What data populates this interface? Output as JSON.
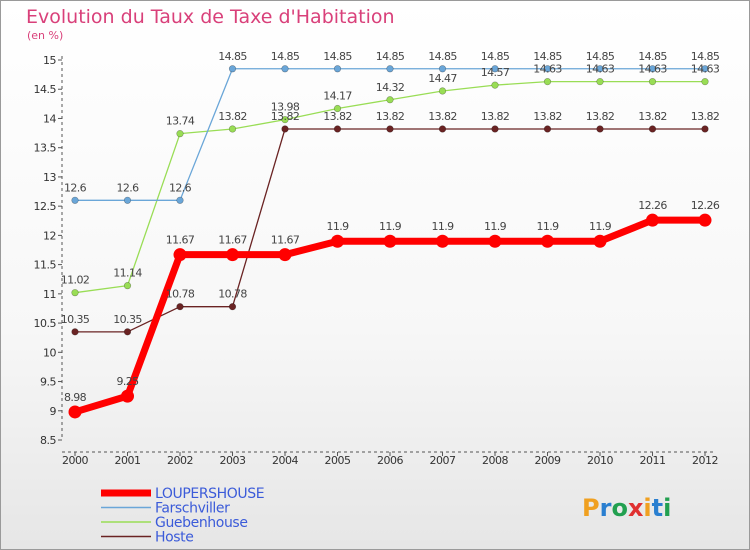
{
  "title": "Evolution du Taux de Taxe d'Habitation",
  "units": "(en %)",
  "logo": "Proxiti",
  "chart_data": {
    "type": "line",
    "x": [
      2000,
      2001,
      2002,
      2003,
      2004,
      2005,
      2006,
      2007,
      2008,
      2009,
      2010,
      2011,
      2012
    ],
    "x_tick_labels": [
      "2000",
      "2001",
      "2002",
      "2003",
      "2004",
      "2005",
      "2006",
      "2007",
      "2008",
      "2009",
      "2010",
      "2011",
      "2012"
    ],
    "ylim": [
      8.5,
      15
    ],
    "y_ticks": [
      8.5,
      9,
      9.5,
      10,
      10.5,
      11,
      11.5,
      12,
      12.5,
      13,
      13.5,
      14,
      14.5,
      15
    ],
    "y_tick_labels": [
      "8.5",
      "9",
      "9.5",
      "10",
      "10.5",
      "11",
      "11.5",
      "12",
      "12.5",
      "13",
      "13.5",
      "14",
      "14.5",
      "15"
    ],
    "grid": false,
    "legend_position": "bottom-left",
    "series": [
      {
        "name": "Hoste",
        "color": "#6a2323",
        "values": [
          10.35,
          10.35,
          10.78,
          10.78,
          13.82,
          13.82,
          13.82,
          13.82,
          13.82,
          13.82,
          13.82,
          13.82,
          13.82
        ],
        "labels": [
          "10.35",
          "10.35",
          "10.78",
          "10.78",
          "13.82",
          "13.82",
          "13.82",
          "13.82",
          "13.82",
          "13.82",
          "13.82",
          "13.82",
          "13.82"
        ]
      },
      {
        "name": "Guebenhouse",
        "color": "#99dd55",
        "values": [
          11.02,
          11.14,
          13.74,
          13.82,
          13.98,
          14.17,
          14.32,
          14.47,
          14.57,
          14.63,
          14.63,
          14.63,
          14.63
        ],
        "labels": [
          "11.02",
          "11.14",
          "13.74",
          "13.82",
          "13.98",
          "14.17",
          "14.32",
          "14.47",
          "14.57",
          "14.63",
          "14.63",
          "14.63",
          "14.63"
        ]
      },
      {
        "name": "Farschviller",
        "color": "#6aa6d8",
        "values": [
          12.6,
          12.6,
          12.6,
          14.85,
          14.85,
          14.85,
          14.85,
          14.85,
          14.85,
          14.85,
          14.85,
          14.85,
          14.85
        ],
        "labels": [
          "12.6",
          "12.6",
          "12.6",
          "14.85",
          "14.85",
          "14.85",
          "14.85",
          "14.85",
          "14.85",
          "14.85",
          "14.85",
          "14.85",
          "14.85"
        ]
      },
      {
        "name": "LOUPERSHOUSE",
        "color": "#ff0000",
        "values": [
          8.98,
          9.25,
          11.67,
          11.67,
          11.67,
          11.9,
          11.9,
          11.9,
          11.9,
          11.9,
          11.9,
          12.26,
          12.26
        ],
        "labels": [
          "8.98",
          "9.25",
          "11.67",
          "11.67",
          "11.67",
          "11.9",
          "11.9",
          "11.9",
          "11.9",
          "11.9",
          "11.9",
          "12.26",
          "12.26"
        ]
      }
    ],
    "legend": [
      {
        "name": "LOUPERSHOUSE",
        "color": "#ff0000"
      },
      {
        "name": "Farschviller",
        "color": "#6aa6d8"
      },
      {
        "name": "Guebenhouse",
        "color": "#99dd55"
      },
      {
        "name": "Hoste",
        "color": "#6a2323"
      }
    ]
  }
}
